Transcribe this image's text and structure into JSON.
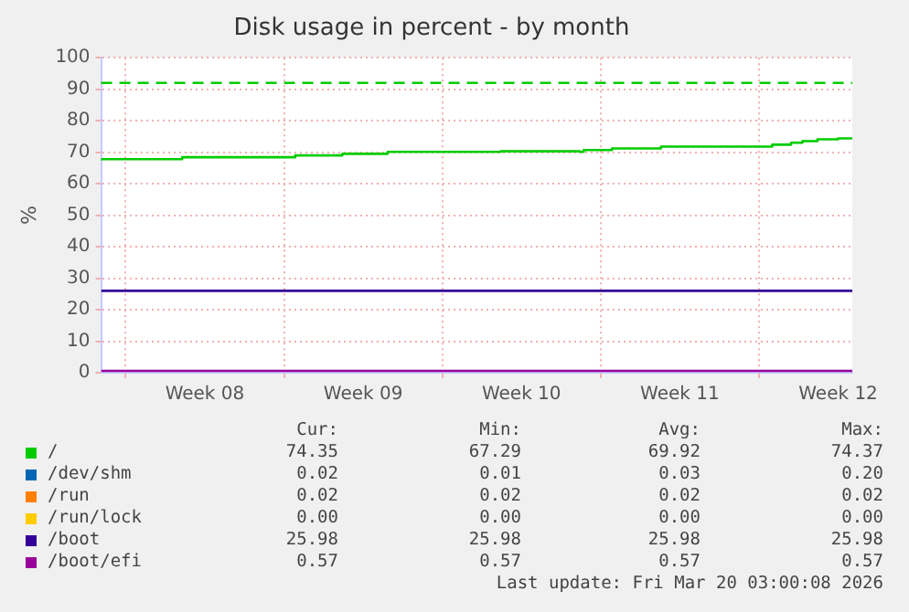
{
  "chart_data": {
    "type": "step",
    "title": "Disk usage in percent - by month",
    "ylabel": "%",
    "xlim": [
      "2026-02-14T22:00",
      "2026-03-20T03:00"
    ],
    "xticks": [
      {
        "value": "2026-02-16T00:00",
        "label": null
      },
      {
        "value": "2026-02-19T12:00",
        "label": "Week 08"
      },
      {
        "value": "2026-02-23T00:00",
        "label": null
      },
      {
        "value": "2026-02-26T12:00",
        "label": "Week 09"
      },
      {
        "value": "2026-03-02T00:00",
        "label": null
      },
      {
        "value": "2026-03-05T12:00",
        "label": "Week 10"
      },
      {
        "value": "2026-03-09T00:00",
        "label": null
      },
      {
        "value": "2026-03-12T12:00",
        "label": "Week 11"
      },
      {
        "value": "2026-03-16T00:00",
        "label": null
      },
      {
        "value": "2026-03-19T12:00",
        "label": "Week 12"
      }
    ],
    "ylim": [
      0,
      100
    ],
    "yticks": [
      0,
      10,
      20,
      30,
      40,
      50,
      60,
      70,
      80,
      90,
      100
    ],
    "grid": true,
    "legend": "bottom",
    "series": [
      {
        "name": "/",
        "color": "#00cc00",
        "x": [
          "2026-02-14T22:00",
          "2026-02-18T12:00",
          "2026-02-23T12:00",
          "2026-02-25T14:00",
          "2026-02-27T14:00",
          "2026-03-04T14:00",
          "2026-03-08T02:00",
          "2026-03-08T06:00",
          "2026-03-09T12:00",
          "2026-03-11T16:00",
          "2026-03-16T14:00",
          "2026-03-17T10:00",
          "2026-03-17T22:00",
          "2026-03-18T14:00",
          "2026-03-19T12:00",
          "2026-03-20T03:00"
        ],
        "values": [
          67.3,
          67.8,
          68.4,
          69.0,
          69.5,
          70.1,
          70.3,
          70.1,
          70.7,
          71.2,
          71.8,
          72.4,
          73.0,
          73.5,
          74.1,
          74.4
        ]
      },
      {
        "name": "/dev/shm",
        "color": "#0066b3"
      },
      {
        "name": "/run",
        "color": "#ff8000"
      },
      {
        "name": "/run/lock",
        "color": "#ffcc00"
      },
      {
        "name": "/boot",
        "color": "#330099",
        "x": [
          "2026-02-14T22:00",
          "2026-03-20T03:00"
        ],
        "values": [
          26,
          26
        ]
      },
      {
        "name": "/boot/efi",
        "color": "#990099",
        "x": [
          "2026-02-14T22:00",
          "2026-03-20T03:00"
        ],
        "values": [
          0.6,
          0.6
        ]
      }
    ],
    "ref_lines": [
      {
        "axis": "y",
        "value": 92,
        "color": "#00cc00",
        "line_style": "dashed"
      }
    ],
    "annotations": [
      "Cur:",
      "Min:",
      "Avg:",
      "Max:",
      "74.35",
      "67.29",
      "69.92",
      "74.37",
      "0.02",
      "0.01",
      "0.03",
      "0.20",
      "0.02",
      "0.02",
      "0.02",
      "0.02",
      "0.00",
      "0.00",
      "0.00",
      "0.00",
      "25.98",
      "25.98",
      "25.98",
      "25.98",
      "0.57",
      "0.57",
      "0.57",
      "0.57",
      "Last update: Fri Mar 20 03:00:08 2026"
    ]
  }
}
